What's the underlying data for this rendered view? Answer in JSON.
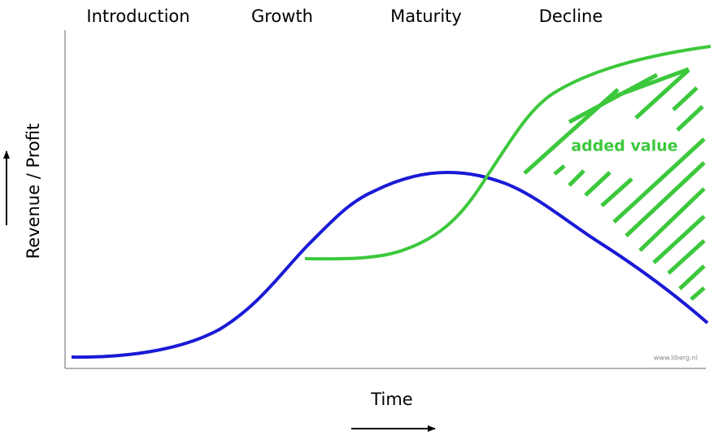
{
  "stages": [
    "Introduction",
    "Growth",
    "Maturity",
    "Decline"
  ],
  "y_axis_label": "Revenue / Profit",
  "x_axis_label": "Time",
  "annotation": "added value",
  "watermark": "www.liberg.nl"
}
